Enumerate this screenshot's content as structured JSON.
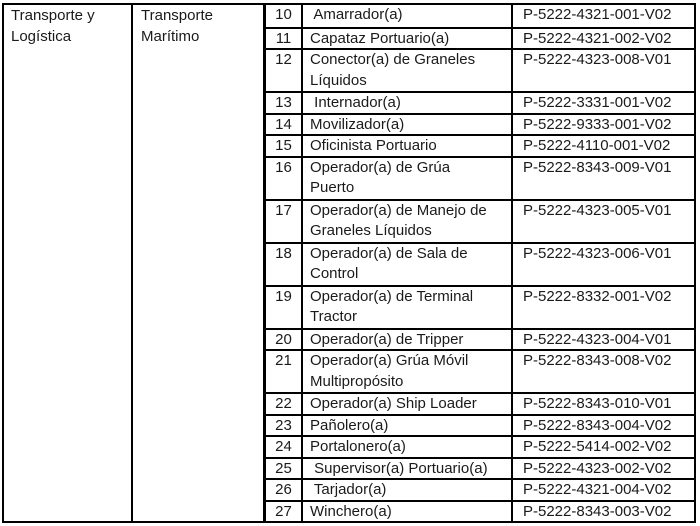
{
  "table": {
    "sector": "Transporte y\nLogística",
    "subsector": "Transporte\nMarítimo",
    "rows": [
      {
        "num": "10",
        "title": " Amarrador(a)",
        "code": "P-5222-4321-001-V02"
      },
      {
        "num": "11",
        "title": "Capataz Portuario(a)",
        "code": "P-5222-4321-002-V02"
      },
      {
        "num": "12",
        "title": "Conector(a) de Graneles\nLíquidos",
        "code": "P-5222-4323-008-V01"
      },
      {
        "num": "13",
        "title": " Internador(a)",
        "code": "P-5222-3331-001-V02"
      },
      {
        "num": "14",
        "title": "Movilizador(a)",
        "code": "P-5222-9333-001-V02"
      },
      {
        "num": "15",
        "title": "Oficinista Portuario",
        "code": "P-5222-4110-001-V02"
      },
      {
        "num": "16",
        "title": "Operador(a) de Grúa\nPuerto",
        "code": "P-5222-8343-009-V01"
      },
      {
        "num": "17",
        "title": "Operador(a) de Manejo de\nGraneles Líquidos",
        "code": "P-5222-4323-005-V01"
      },
      {
        "num": "18",
        "title": "Operador(a) de Sala de\nControl",
        "code": "P-5222-4323-006-V01"
      },
      {
        "num": "19",
        "title": "Operador(a) de Terminal\nTractor",
        "code": "P-5222-8332-001-V02"
      },
      {
        "num": "20",
        "title": "Operador(a) de Tripper",
        "code": "P-5222-4323-004-V01"
      },
      {
        "num": "21",
        "title": "Operador(a) Grúa Móvil\nMultipropósito",
        "code": "P-5222-8343-008-V02"
      },
      {
        "num": "22",
        "title": "Operador(a) Ship Loader",
        "code": "P-5222-8343-010-V01"
      },
      {
        "num": "23",
        "title": "Pañolero(a)",
        "code": "P-5222-8343-004-V02"
      },
      {
        "num": "24",
        "title": "Portalonero(a)",
        "code": "P-5222-5414-002-V02"
      },
      {
        "num": "25",
        "title": " Supervisor(a) Portuario(a)",
        "code": "P-5222-4323-002-V02"
      },
      {
        "num": "26",
        "title": " Tarjador(a)",
        "code": "P-5222-4321-004-V02"
      },
      {
        "num": "27",
        "title": "Winchero(a)",
        "code": "P-5222-8343-003-V02"
      }
    ]
  },
  "layout_rows": {
    "single_height": 21.5,
    "double_height": 43
  },
  "colors": {
    "border": "#000000",
    "text": "#1a1a1a",
    "background": "#ffffff"
  }
}
